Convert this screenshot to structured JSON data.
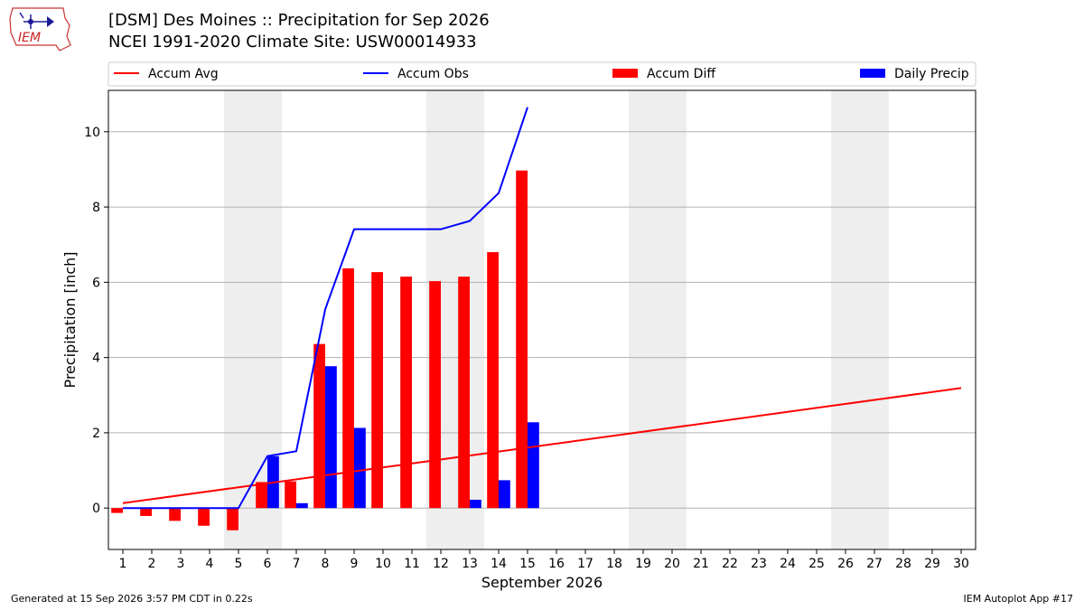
{
  "header": {
    "title_line1": "[DSM] Des Moines :: Precipitation for Sep 2026",
    "title_line2": "NCEI 1991-2020 Climate Site: USW00014933",
    "logo_text": "IEM"
  },
  "footer": {
    "generated": "Generated at 15 Sep 2026 3:57 PM CDT in 0.22s",
    "app": "IEM Autoplot App #17"
  },
  "colors": {
    "avg": "#ff0000",
    "obs": "#0000ff",
    "diff": "#ff0000",
    "daily": "#0000ff",
    "weekend_band": "#eeeeee",
    "grid": "#b0b0b0"
  },
  "chart_data": {
    "type": "bar",
    "xlabel": "September 2026",
    "ylabel": "Precipitation [inch]",
    "xlim": [
      0.5,
      30.5
    ],
    "ylim": [
      -1.1,
      11.1
    ],
    "yticks": [
      0,
      2,
      4,
      6,
      8,
      10
    ],
    "grid": true,
    "legend_position": "top",
    "legend": [
      "Accum Avg",
      "Accum Obs",
      "Accum Diff",
      "Daily Precip"
    ],
    "days": [
      1,
      2,
      3,
      4,
      5,
      6,
      7,
      8,
      9,
      10,
      11,
      12,
      13,
      14,
      15,
      16,
      17,
      18,
      19,
      20,
      21,
      22,
      23,
      24,
      25,
      26,
      27,
      28,
      29,
      30
    ],
    "weekend_days": [
      5,
      6,
      12,
      13,
      19,
      20,
      26,
      27
    ],
    "series": [
      {
        "name": "Accum Avg",
        "kind": "line",
        "x": [
          1,
          30
        ],
        "values": [
          0.13,
          3.19
        ]
      },
      {
        "name": "Accum Obs",
        "kind": "line",
        "x": [
          1,
          2,
          3,
          4,
          5,
          6,
          7,
          8,
          9,
          10,
          11,
          12,
          13,
          14,
          15
        ],
        "values": [
          0.0,
          0.0,
          0.0,
          0.0,
          0.0,
          1.38,
          1.51,
          5.28,
          7.41,
          7.41,
          7.41,
          7.41,
          7.63,
          8.37,
          10.65
        ]
      },
      {
        "name": "Accum Diff",
        "kind": "bar",
        "x": [
          1,
          2,
          3,
          4,
          5,
          6,
          7,
          8,
          9,
          10,
          11,
          12,
          13,
          14,
          15
        ],
        "values": [
          -0.13,
          -0.21,
          -0.34,
          -0.47,
          -0.59,
          0.69,
          0.71,
          4.36,
          6.37,
          6.27,
          6.15,
          6.03,
          6.15,
          6.8,
          8.97
        ]
      },
      {
        "name": "Daily Precip",
        "kind": "bar",
        "x": [
          1,
          2,
          3,
          4,
          5,
          6,
          7,
          8,
          9,
          10,
          11,
          12,
          13,
          14,
          15
        ],
        "values": [
          0,
          0,
          0,
          0,
          0,
          1.38,
          0.13,
          3.77,
          2.13,
          0,
          0,
          0,
          0.22,
          0.74,
          2.28
        ]
      }
    ]
  }
}
